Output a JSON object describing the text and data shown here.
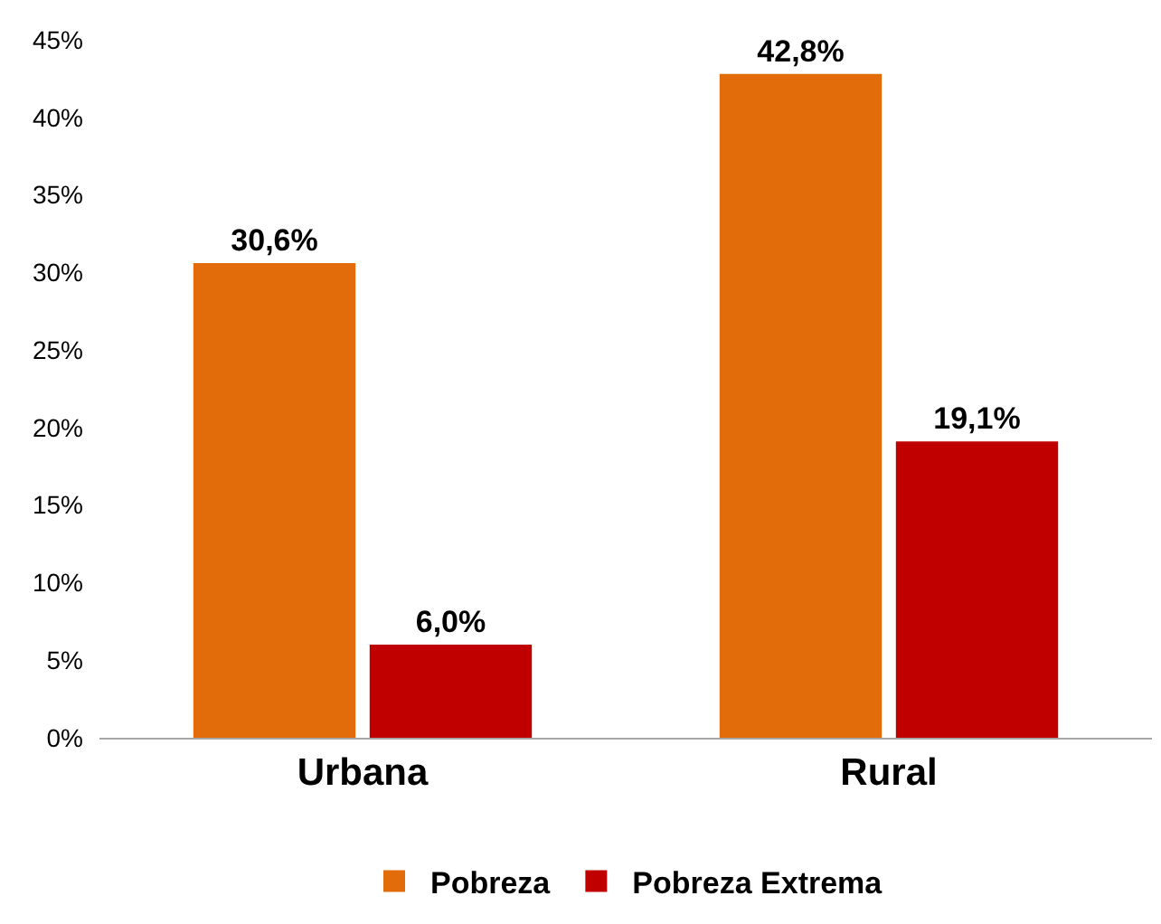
{
  "chart_data": {
    "type": "bar",
    "categories": [
      "Urbana",
      "Rural"
    ],
    "series": [
      {
        "name": "Pobreza",
        "color": "#e36c0a",
        "values": [
          30.6,
          42.8
        ],
        "value_labels": [
          "30,6%",
          "42,8%"
        ]
      },
      {
        "name": "Pobreza Extrema",
        "color": "#c00000",
        "values": [
          6.0,
          19.1
        ],
        "value_labels": [
          "6,0%",
          "19,1%"
        ]
      }
    ],
    "ylim": [
      0,
      45
    ],
    "yticks": [
      {
        "value": 0,
        "label": "0%"
      },
      {
        "value": 5,
        "label": "5%"
      },
      {
        "value": 10,
        "label": "10%"
      },
      {
        "value": 15,
        "label": "15%"
      },
      {
        "value": 20,
        "label": "20%"
      },
      {
        "value": 25,
        "label": "25%"
      },
      {
        "value": 30,
        "label": "30%"
      },
      {
        "value": 35,
        "label": "35%"
      },
      {
        "value": 40,
        "label": "40%"
      },
      {
        "value": 45,
        "label": "45%"
      }
    ],
    "legend": "bottom"
  }
}
